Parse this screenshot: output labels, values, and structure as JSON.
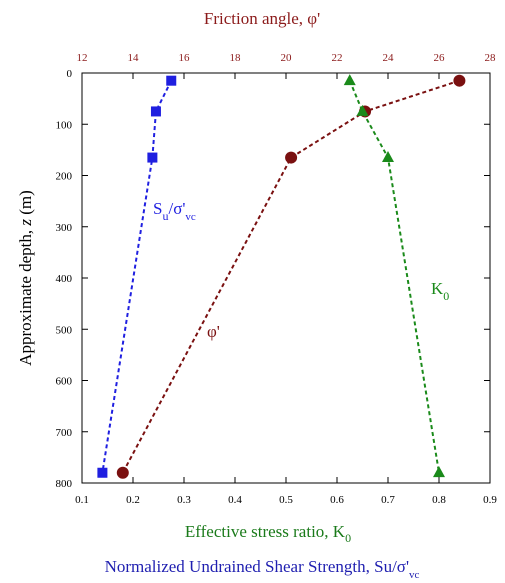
{
  "chart_data": {
    "type": "scatter",
    "top_axis": {
      "label": "Friction angle, φ'",
      "ticks": [
        12,
        14,
        16,
        18,
        20,
        22,
        24,
        26,
        28
      ],
      "range": [
        12,
        28
      ],
      "color": "#8b1a1a"
    },
    "bottom_axis": {
      "label_line1_main": "Effective stress ratio, K",
      "label_line1_sub": "0",
      "label_line2_main": "Normalized Undrained Shear Strength, Su/σ'",
      "label_line2_sub": "vc",
      "line1_color": "#1a7a1a",
      "line2_color": "#1f1fb0",
      "ticks": [
        0.1,
        0.2,
        0.3,
        0.4,
        0.5,
        0.6,
        0.7,
        0.8,
        0.9
      ],
      "range": [
        0.1,
        0.9
      ]
    },
    "y_axis": {
      "label_main": "Approximate depth, ",
      "label_italic": "z",
      "label_end": " (m)",
      "ticks": [
        0,
        100,
        200,
        300,
        400,
        500,
        600,
        700,
        800
      ],
      "range": [
        0,
        800
      ],
      "inverted": true
    },
    "series": [
      {
        "key": "su",
        "label_main": "S",
        "label_sub": "u",
        "label_rest": "/σ'",
        "label_sub2": "vc",
        "color": "#1f1fe0",
        "marker": "square",
        "axis": "bottom",
        "points": [
          [
            0.275,
            15
          ],
          [
            0.245,
            75
          ],
          [
            0.238,
            165
          ],
          [
            0.14,
            780
          ]
        ]
      },
      {
        "key": "phi",
        "label_main": "φ'",
        "color": "#7a1010",
        "marker": "circle",
        "axis": "top",
        "points": [
          [
            26.8,
            15
          ],
          [
            23.1,
            75
          ],
          [
            20.2,
            165
          ],
          [
            13.6,
            780
          ]
        ]
      },
      {
        "key": "k0",
        "label_main": "K",
        "label_sub": "0",
        "color": "#1a8a1a",
        "marker": "triangle",
        "axis": "bottom",
        "points": [
          [
            0.625,
            15
          ],
          [
            0.65,
            75
          ],
          [
            0.7,
            165
          ],
          [
            0.8,
            780
          ]
        ]
      }
    ]
  }
}
